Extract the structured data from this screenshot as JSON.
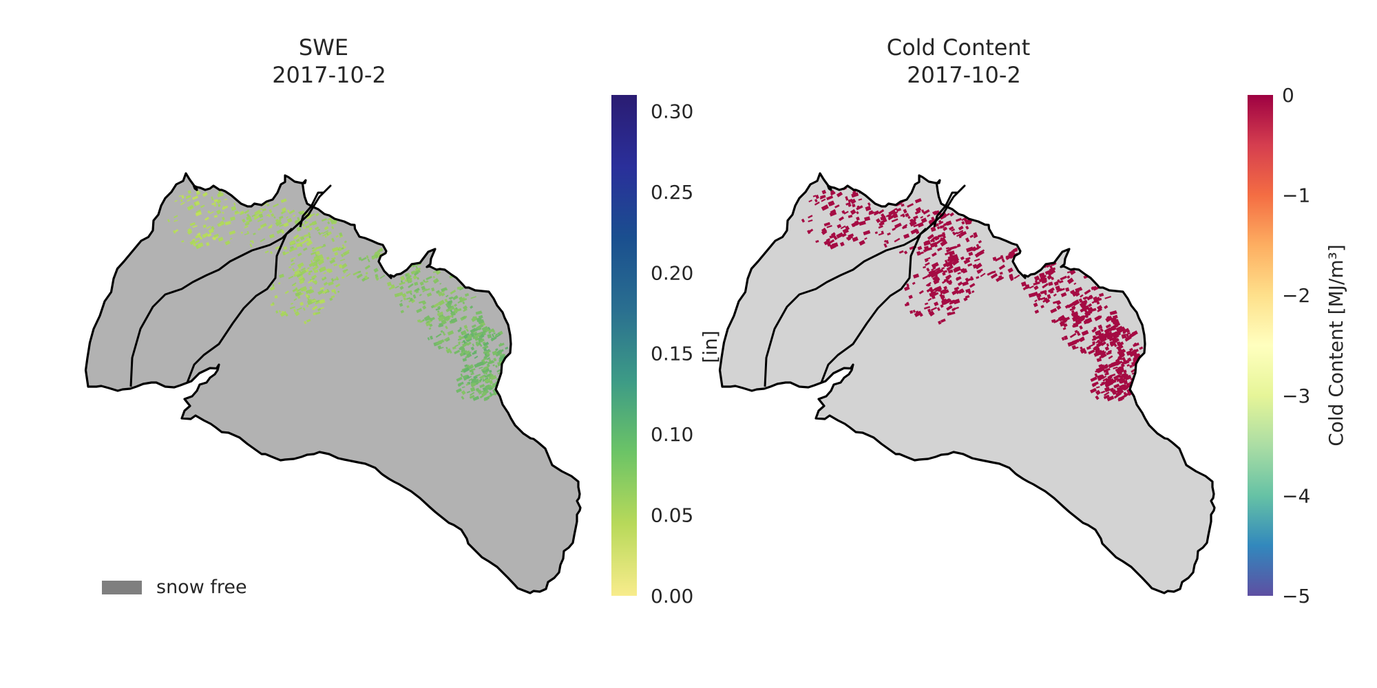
{
  "chart_data": [
    {
      "type": "heatmap",
      "title_line1": "SWE",
      "title_line2": "2017-10-2",
      "colorbar": {
        "label": "[in]",
        "colormap": "summer_r-like (yellow→green→blue→navy)",
        "range": [
          0.0,
          0.31
        ],
        "ticks": [
          "0.00",
          "0.05",
          "0.10",
          "0.15",
          "0.20",
          "0.25",
          "0.30"
        ],
        "tick_values": [
          0.0,
          0.05,
          0.1,
          0.15,
          0.2,
          0.25,
          0.3
        ],
        "colors": [
          "#f8ec8c",
          "#b8d95a",
          "#6cc466",
          "#3d9b86",
          "#2a6f90",
          "#1a4f8f",
          "#2a2f9a",
          "#2a1c72"
        ]
      },
      "map": {
        "background_color": "#b2b2b2",
        "outline_color": "#000000",
        "snow_color_low": "#c7e35a",
        "snow_color_high": "#5cad6e"
      },
      "legend": {
        "label": "snow free",
        "swatch_color": "#7f7f7f"
      }
    },
    {
      "type": "heatmap",
      "title_line1": "Cold Content",
      "title_line2": "2017-10-2",
      "colorbar": {
        "label": "Cold Content [MJ/m³]",
        "colormap": "Spectral",
        "range": [
          -5,
          0
        ],
        "ticks": [
          "0",
          "−1",
          "−2",
          "−3",
          "−4",
          "−5"
        ],
        "tick_values": [
          0,
          -1,
          -2,
          -3,
          -4,
          -5
        ],
        "colors": [
          "#9e0142",
          "#d53e4f",
          "#f46d43",
          "#fdae61",
          "#fee08b",
          "#ffffbf",
          "#e6f598",
          "#abdda4",
          "#66c2a5",
          "#3288bd",
          "#5e4fa2"
        ]
      },
      "map": {
        "background_color": "#d3d3d3",
        "outline_color": "#000000",
        "snow_color": "#a50b43"
      }
    }
  ]
}
